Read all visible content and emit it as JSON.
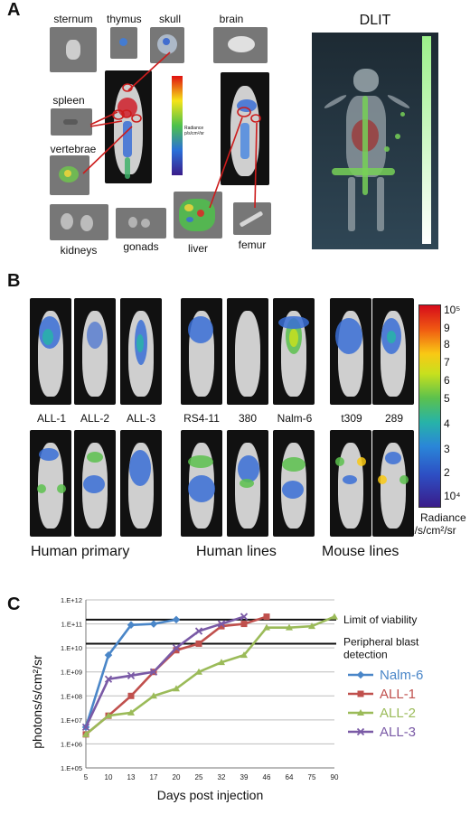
{
  "panelA": {
    "letter": "A",
    "organs": {
      "sternum": "sternum",
      "thymus": "thymus",
      "skull": "skull",
      "brain": "brain",
      "spleen": "spleen",
      "vertebrae": "vertebrae",
      "kidneys": "kidneys",
      "gonads": "gonads",
      "liver": "liver",
      "femur": "femur"
    },
    "dlit_title": "DLIT",
    "small_colorbar_label": "Radiance p/s/cm²/sr"
  },
  "panelB": {
    "letter": "B",
    "labels": [
      "ALL-1",
      "ALL-2",
      "ALL-3",
      "RS4-11",
      "380",
      "Nalm-6",
      "t309",
      "289"
    ],
    "groups": [
      "Human primary",
      "Human lines",
      "Mouse lines"
    ],
    "colorbar": {
      "ticks": [
        "10⁵",
        "9",
        "8",
        "7",
        "6",
        "5",
        "4",
        "3",
        "2",
        "10⁴"
      ],
      "label1": "Radiance",
      "label2": "p/s/cm²/sr"
    }
  },
  "panelC": {
    "letter": "C",
    "lines_text": {
      "limit": "Limit of viability",
      "blast1": "Peripheral blast",
      "blast2": "detection"
    }
  },
  "chart_data": {
    "type": "line",
    "xlabel": "Days post injection",
    "ylabel": "photons/s/cm²/sr",
    "categories": [
      "5",
      "10",
      "13",
      "17",
      "20",
      "25",
      "32",
      "39",
      "46",
      "64",
      "75",
      "90"
    ],
    "y_ticks": [
      "1.E+05",
      "1.E+06",
      "1.E+07",
      "1.E+08",
      "1.E+09",
      "1.E+10",
      "1.E+11",
      "1.E+12"
    ],
    "ylim_log10": [
      5,
      12
    ],
    "log_scale": true,
    "reference_lines": [
      {
        "name": "Limit of viability",
        "value": 150000000000.0
      },
      {
        "name": "Peripheral blast detection",
        "value": 15000000000.0
      }
    ],
    "series": [
      {
        "name": "Nalm-6",
        "color": "#4a86c8",
        "marker": "diamond",
        "x": [
          "5",
          "10",
          "13",
          "17",
          "20"
        ],
        "values": [
          5000000.0,
          5000000000.0,
          90000000000.0,
          100000000000.0,
          150000000000.0
        ]
      },
      {
        "name": "ALL-1",
        "color": "#c0504d",
        "marker": "square",
        "x": [
          "5",
          "10",
          "13",
          "17",
          "20",
          "25",
          "32",
          "39",
          "46"
        ],
        "values": [
          2500000.0,
          15000000.0,
          100000000.0,
          1000000000.0,
          8000000000.0,
          15000000000.0,
          80000000000.0,
          100000000000.0,
          200000000000.0
        ]
      },
      {
        "name": "ALL-2",
        "color": "#9bbb59",
        "marker": "triangle",
        "x": [
          "5",
          "10",
          "13",
          "17",
          "20",
          "25",
          "32",
          "39",
          "46",
          "64",
          "75",
          "90"
        ],
        "values": [
          2500000.0,
          15000000.0,
          20000000.0,
          100000000.0,
          200000000.0,
          1000000000.0,
          2500000000.0,
          5000000000.0,
          70000000000.0,
          70000000000.0,
          80000000000.0,
          200000000000.0
        ]
      },
      {
        "name": "ALL-3",
        "color": "#7a5aa6",
        "marker": "x",
        "x": [
          "5",
          "10",
          "13",
          "17",
          "20",
          "25",
          "32",
          "39"
        ],
        "values": [
          5000000.0,
          500000000.0,
          700000000.0,
          1000000000.0,
          10000000000.0,
          50000000000.0,
          100000000000.0,
          200000000000.0
        ]
      }
    ]
  }
}
